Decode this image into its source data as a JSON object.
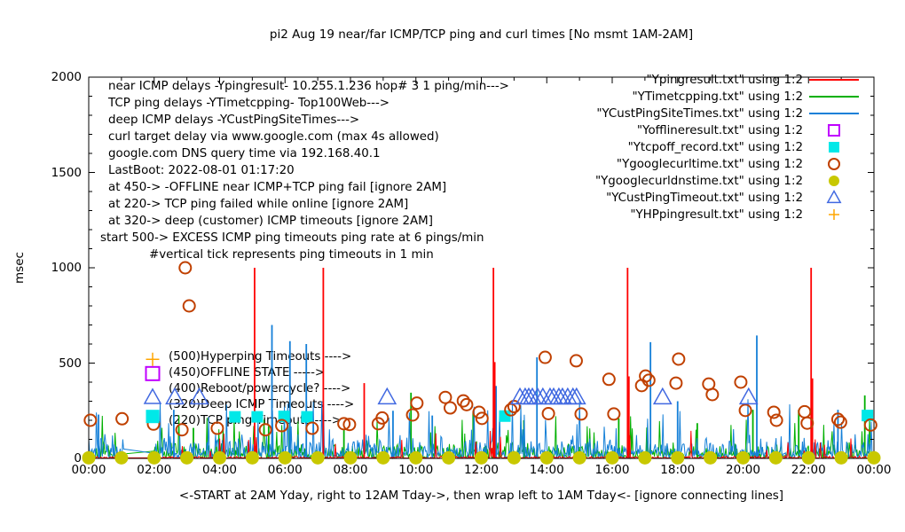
{
  "title": "pi2 Aug 19  near/far ICMP/TCP ping and curl times [No msmt 1AM-2AM]",
  "ylabel": "msec",
  "xlabel": "<-START at 2AM Yday, right to 12AM Tday->, then wrap left to 1AM Tday<- [ignore connecting lines]",
  "annotations": {
    "lines": [
      "near ICMP delays -Ypingresult- 10.255.1.236 hop# 3 1 ping/min--->",
      "TCP ping delays -YTimetcpping- Top100Web--->",
      "deep ICMP delays -YCustPingSiteTimes--->",
      "curl target delay via www.google.com (max 4s allowed)",
      "google.com DNS query time via 192.168.40.1",
      "LastBoot: 2022-08-01 01:17:20",
      "at 450-> -OFFLINE near ICMP+TCP ping fail [ignore 2AM]",
      "at 220-> TCP ping failed while online [ignore 2AM]",
      "at 320-> deep (customer) ICMP timeouts [ignore 2AM]",
      "start 500-> EXCESS ICMP ping timeouts ping rate at 6 pings/min",
      "#vertical tick represents ping timeouts in 1 min"
    ]
  },
  "mid_labels": [
    {
      "text": "(500)Hyperping Timeouts ---->",
      "marker": "plus",
      "color": "#ffa500",
      "value": 520
    },
    {
      "text": "(450)OFFLINE STATE ----->",
      "marker": "open-square",
      "color": "#c000ff",
      "value": 445
    },
    {
      "text": "(400)Reboot/powercycle? ---->",
      "marker": "none",
      "color": "#000000",
      "value": 400
    },
    {
      "text": "(320)Deep ICMP Timeouts ---->",
      "marker": "open-triangle",
      "color": "#4169e1",
      "value": 320
    },
    {
      "text": "(220)TCP ping Timeouts ---->",
      "marker": "filled-square",
      "color": "#00e8e8",
      "value": 220
    }
  ],
  "legend": [
    {
      "label": "\"Ypingresult.txt\" using 1:2",
      "marker": "line",
      "color": "#ff0000"
    },
    {
      "label": "\"YTimetcpping.txt\" using 1:2",
      "marker": "line",
      "color": "#00b000"
    },
    {
      "label": "\"YCustPingSiteTimes.txt\" using 1:2",
      "marker": "line",
      "color": "#1580d8"
    },
    {
      "label": "\"Yofflineresult.txt\" using 1:2",
      "marker": "open-square",
      "color": "#c000ff"
    },
    {
      "label": "\"Ytcpoff_record.txt\" using 1:2",
      "marker": "filled-square",
      "color": "#00e8e8"
    },
    {
      "label": "\"Ygooglecurltime.txt\" using 1:2",
      "marker": "open-circle",
      "color": "#c04000"
    },
    {
      "label": "\"Ygooglecurldnstime.txt\" using 1:2",
      "marker": "filled-circle",
      "color": "#c8c800"
    },
    {
      "label": "\"YCustPingTimeout.txt\" using 1:2",
      "marker": "open-triangle",
      "color": "#4169e1"
    },
    {
      "label": "\"YHPpingresult.txt\" using 1:2",
      "marker": "plus",
      "color": "#ffa500"
    }
  ],
  "chart_data": {
    "type": "line+scatter",
    "title": "pi2 Aug 19  near/far ICMP/TCP ping and curl times [No msmt 1AM-2AM]",
    "xlabel": "<-START at 2AM Yday, right to 12AM Tday->, then wrap left to 1AM Tday<- [ignore connecting lines]",
    "ylabel": "msec",
    "x_axis": {
      "tick_labels": [
        "00:00",
        "02:00",
        "04:00",
        "06:00",
        "08:00",
        "10:00",
        "12:00",
        "14:00",
        "16:00",
        "18:00",
        "20:00",
        "22:00",
        "00:00"
      ],
      "range_hours": [
        0,
        24
      ],
      "minor_tick_every_hours": 1,
      "major_tick_every_hours": 2
    },
    "y_axis": {
      "ticks": [
        0,
        500,
        1000,
        1500,
        2000
      ],
      "range": [
        0,
        2000
      ],
      "minor_step": 100,
      "label": "msec"
    },
    "grid": false,
    "legend_position": "top-right",
    "no_msmt_gap_hours": [
      1.08,
      2.0
    ],
    "line_series": [
      {
        "name": "Ypingresult.txt",
        "role": "near ICMP ping delay",
        "color": "#ff0000",
        "draw": 3,
        "noise": {
          "seed": 101,
          "base_min": 1,
          "base_max": 14,
          "spike_chance": 0.04,
          "spike_min": 30,
          "spike_max": 150
        },
        "spikes": [
          [
            5.07,
            1000
          ],
          [
            7.17,
            1000
          ],
          [
            8.42,
            395
          ],
          [
            12.37,
            1000
          ],
          [
            12.41,
            505
          ],
          [
            16.47,
            1000
          ],
          [
            16.51,
            430
          ],
          [
            22.08,
            1000
          ],
          [
            22.12,
            420
          ]
        ]
      },
      {
        "name": "YTimetcpping.txt",
        "role": "TCP ping delay",
        "color": "#00b000",
        "draw": 1,
        "noise": {
          "seed": 202,
          "base_min": 2,
          "base_max": 100,
          "spike_chance": 0.05,
          "spike_min": 110,
          "spike_max": 230
        },
        "spikes": [
          [
            3.2,
            160
          ],
          [
            5.5,
            170
          ],
          [
            7.8,
            150
          ],
          [
            9.85,
            345
          ],
          [
            11.75,
            240
          ],
          [
            13.3,
            200
          ],
          [
            16.2,
            210
          ],
          [
            18.6,
            185
          ],
          [
            20.3,
            255
          ],
          [
            21.7,
            255
          ],
          [
            23.72,
            330
          ]
        ]
      },
      {
        "name": "YCustPingSiteTimes.txt",
        "role": "deep ICMP ping delay",
        "color": "#1580d8",
        "draw": 2,
        "noise": {
          "seed": 303,
          "base_min": 4,
          "base_max": 140,
          "spike_chance": 0.05,
          "spike_min": 150,
          "spike_max": 320
        },
        "spikes": [
          [
            0.3,
            230
          ],
          [
            2.6,
            255
          ],
          [
            5.6,
            700
          ],
          [
            6.15,
            615
          ],
          [
            6.65,
            600
          ],
          [
            9.3,
            250
          ],
          [
            10.5,
            225
          ],
          [
            12.45,
            380
          ],
          [
            13.7,
            530
          ],
          [
            17.17,
            610
          ],
          [
            18.0,
            300
          ],
          [
            20.42,
            645
          ],
          [
            22.9,
            255
          ]
        ]
      }
    ],
    "scatter_series": [
      {
        "name": "Yofflineresult.txt",
        "marker": "open-square",
        "color": "#c000ff",
        "size": 13,
        "points": []
      },
      {
        "name": "Ytcpoff_record.txt",
        "marker": "filled-square",
        "color": "#00e8e8",
        "size": 13,
        "points": [
          [
            4.47,
            218
          ],
          [
            5.15,
            218
          ],
          [
            5.97,
            220
          ],
          [
            6.67,
            218
          ],
          [
            12.72,
            222
          ],
          [
            23.8,
            225
          ]
        ]
      },
      {
        "name": "Ygooglecurltime.txt",
        "marker": "open-circle",
        "color": "#c04000",
        "size": 13,
        "points": [
          [
            0.05,
            200
          ],
          [
            1.02,
            208
          ],
          [
            1.98,
            180
          ],
          [
            2.85,
            150
          ],
          [
            2.95,
            1000
          ],
          [
            3.07,
            800
          ],
          [
            3.93,
            158
          ],
          [
            5.4,
            150
          ],
          [
            5.9,
            172
          ],
          [
            6.83,
            158
          ],
          [
            7.8,
            182
          ],
          [
            7.97,
            178
          ],
          [
            8.85,
            182
          ],
          [
            8.97,
            212
          ],
          [
            9.9,
            228
          ],
          [
            10.03,
            290
          ],
          [
            10.9,
            320
          ],
          [
            11.05,
            265
          ],
          [
            11.45,
            302
          ],
          [
            11.55,
            282
          ],
          [
            11.93,
            242
          ],
          [
            12.02,
            210
          ],
          [
            12.9,
            255
          ],
          [
            13.0,
            272
          ],
          [
            13.95,
            530
          ],
          [
            14.05,
            235
          ],
          [
            14.9,
            512
          ],
          [
            15.05,
            233
          ],
          [
            15.9,
            415
          ],
          [
            16.05,
            233
          ],
          [
            16.9,
            382
          ],
          [
            17.02,
            432
          ],
          [
            17.12,
            410
          ],
          [
            17.95,
            395
          ],
          [
            18.03,
            521
          ],
          [
            18.95,
            390
          ],
          [
            19.06,
            335
          ],
          [
            19.93,
            400
          ],
          [
            20.07,
            252
          ],
          [
            20.94,
            242
          ],
          [
            21.02,
            200
          ],
          [
            21.88,
            245
          ],
          [
            21.96,
            185
          ],
          [
            22.9,
            205
          ],
          [
            22.98,
            190
          ],
          [
            23.9,
            175
          ]
        ]
      },
      {
        "name": "Ygooglecurldnstime.txt",
        "marker": "filled-circle",
        "color": "#c8c800",
        "size": 15,
        "points": [
          [
            0,
            3
          ],
          [
            1,
            3
          ],
          [
            2,
            3
          ],
          [
            3,
            3
          ],
          [
            4,
            3
          ],
          [
            5,
            3
          ],
          [
            6,
            3
          ],
          [
            7,
            3
          ],
          [
            8,
            3
          ],
          [
            9,
            3
          ],
          [
            10,
            3
          ],
          [
            11,
            3
          ],
          [
            12,
            3
          ],
          [
            13,
            3
          ],
          [
            14,
            3
          ],
          [
            15,
            3
          ],
          [
            16,
            3
          ],
          [
            17,
            3
          ],
          [
            18,
            3
          ],
          [
            19,
            3
          ],
          [
            20,
            3
          ],
          [
            21,
            3
          ],
          [
            22,
            3
          ],
          [
            23,
            3
          ],
          [
            24,
            3
          ]
        ]
      },
      {
        "name": "YCustPingTimeout.txt",
        "marker": "open-triangle",
        "color": "#4169e1",
        "size": 16,
        "points": [
          [
            2.63,
            320
          ],
          [
            3.38,
            320
          ],
          [
            9.12,
            320
          ],
          [
            13.18,
            320
          ],
          [
            13.34,
            320
          ],
          [
            13.45,
            320
          ],
          [
            13.56,
            320
          ],
          [
            13.72,
            320
          ],
          [
            13.88,
            320
          ],
          [
            14.1,
            320
          ],
          [
            14.21,
            320
          ],
          [
            14.37,
            320
          ],
          [
            14.48,
            320
          ],
          [
            14.64,
            320
          ],
          [
            14.8,
            320
          ],
          [
            14.91,
            320
          ],
          [
            17.54,
            320
          ],
          [
            20.17,
            320
          ]
        ]
      },
      {
        "name": "YHPpingresult.txt",
        "marker": "plus",
        "color": "#ffa500",
        "size": 15,
        "points": []
      }
    ]
  }
}
